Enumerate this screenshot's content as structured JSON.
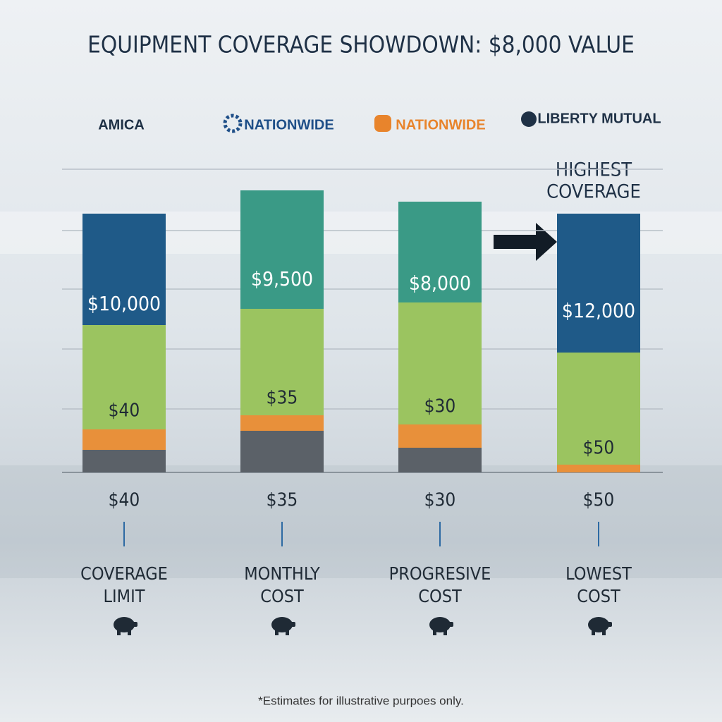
{
  "title": "EQUIPMENT COVERAGE SHOWDOWN: $8,000 VALUE",
  "callout": [
    "HIGHEST",
    "COVERAGE"
  ],
  "columns": [
    {
      "brand": "AMICA",
      "coverage": "$10,000",
      "bar_cost": "$40",
      "cost": "$40",
      "label": [
        "COVERAGE",
        "LIMIT"
      ]
    },
    {
      "brand": "NATIONWIDE",
      "coverage": "$9,500",
      "bar_cost": "$35",
      "cost": "$35",
      "label": [
        "MONTHLY",
        "COST"
      ]
    },
    {
      "brand": "NATIONWIDE",
      "coverage": "$8,000",
      "bar_cost": "$30",
      "cost": "$30",
      "label": [
        "PROGRESIVE",
        "COST"
      ]
    },
    {
      "brand": "LIBERTY MUTUAL",
      "coverage": "$12,000",
      "bar_cost": "$50",
      "cost": "$50",
      "label": [
        "LOWEST",
        "COST"
      ]
    }
  ],
  "footnote": "*Estimates for illustrative purpoes only."
}
